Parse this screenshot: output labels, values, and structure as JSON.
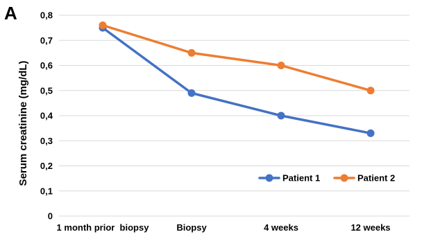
{
  "panel_label": "A",
  "colors": {
    "patient1": "#4472c4",
    "patient2": "#ed7d31",
    "grid": "#d9d9d9"
  },
  "chart_data": {
    "type": "line",
    "title": "",
    "xlabel": "",
    "ylabel": "Serum creatinine (mg/dL)",
    "categories": [
      "1 month prior  biopsy",
      "Biopsy",
      "4 weeks",
      "12 weeks"
    ],
    "series": [
      {
        "name": "Patient 1",
        "color": "#4472c4",
        "values": [
          0.75,
          0.49,
          0.4,
          0.33
        ]
      },
      {
        "name": "Patient 2",
        "color": "#ed7d31",
        "values": [
          0.76,
          0.65,
          0.6,
          0.5
        ]
      }
    ],
    "ylim": [
      0,
      0.8
    ],
    "yticks": [
      "0",
      "0,1",
      "0,2",
      "0,3",
      "0,4",
      "0,5",
      "0,6",
      "0,7",
      "0,8"
    ],
    "grid": true,
    "legend_position": "bottom-right",
    "markers": "circle"
  }
}
